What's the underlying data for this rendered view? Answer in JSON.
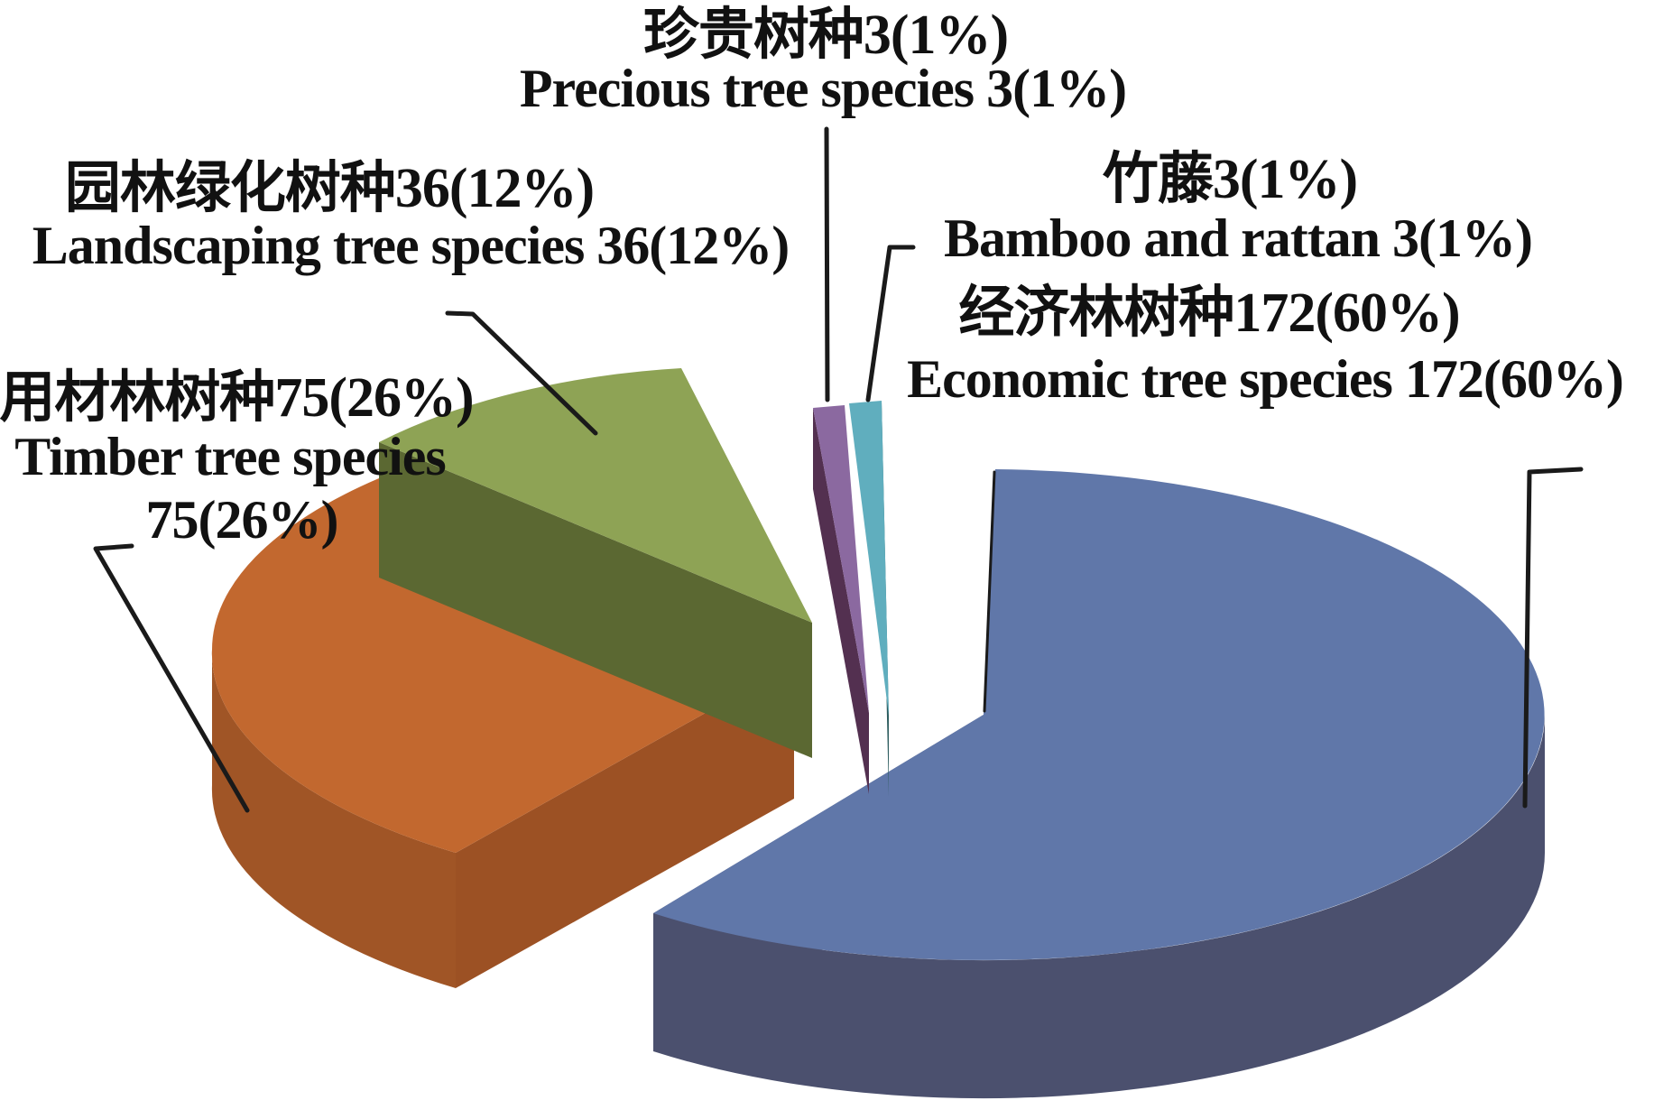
{
  "chart_data": {
    "type": "pie",
    "style": "3d-exploded",
    "title": "",
    "legend": "none",
    "label_format": "name value(percent%)",
    "line_color": "#1a1a1a",
    "background": "#ffffff",
    "series": [
      {
        "id": "economic",
        "name_zh": "经济林树种",
        "name_en": "Economic tree species",
        "label_zh": "经济林树种172(60%)",
        "label_en": "Economic tree species 172(60%)",
        "value": 172,
        "percent": 60,
        "color_top": "#6077a9",
        "color_side": "#4b506e",
        "color_side2": "#575e80"
      },
      {
        "id": "timber",
        "name_zh": "用材林树种",
        "name_en": "Timber tree species",
        "label_zh": "用材林树种75(26%)",
        "label_en_line1": "Timber tree species",
        "label_en_line2": "75(26%)",
        "value": 75,
        "percent": 26,
        "color_top": "#c2682f",
        "color_side": "#a05526",
        "color_side2": "#9c5124"
      },
      {
        "id": "landscaping",
        "name_zh": "园林绿化树种",
        "name_en": "Landscaping tree species",
        "label_zh": "园林绿化树种36(12%)",
        "label_en": "Landscaping tree species 36(12%)",
        "value": 36,
        "percent": 12,
        "color_top": "#8ea355",
        "color_side": "#5b6832"
      },
      {
        "id": "precious",
        "name_zh": "珍贵树种",
        "name_en": "Precious tree species",
        "label_zh": "珍贵树种3(1%)",
        "label_en": "Precious tree species 3(1%)",
        "value": 3,
        "percent": 1,
        "color_top": "#8b69a0",
        "color_side": "#533050"
      },
      {
        "id": "bamboo",
        "name_zh": "竹藤",
        "name_en": "Bamboo and rattan",
        "label_zh": "竹藤3(1%)",
        "label_en": "Bamboo and rattan 3(1%)",
        "value": 3,
        "percent": 1,
        "color_top": "#60aebe",
        "color_side": "#2e5d5f"
      }
    ]
  }
}
